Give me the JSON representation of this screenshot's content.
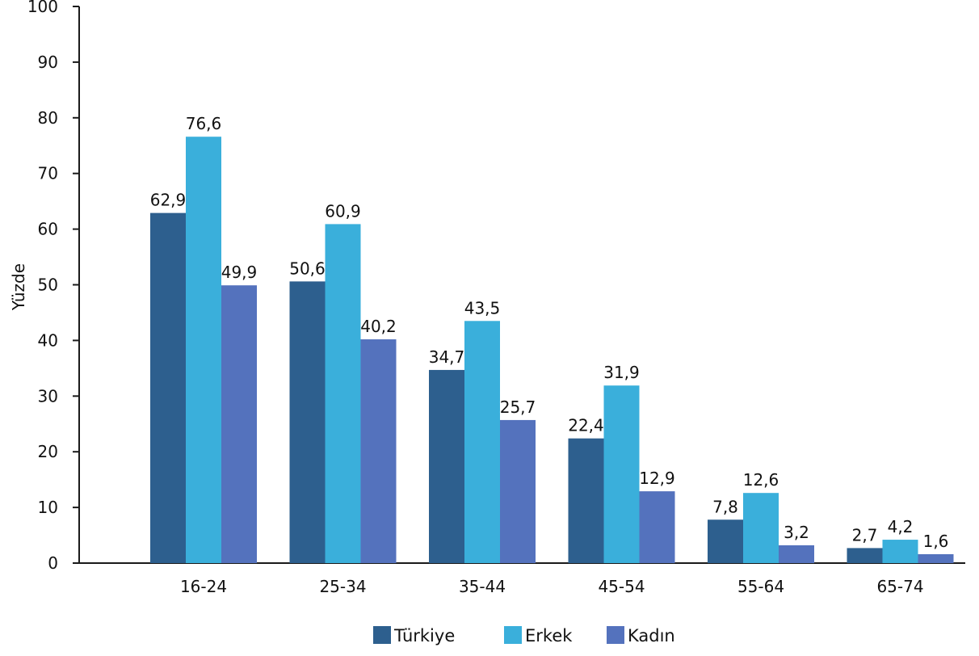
{
  "chart_data": {
    "type": "bar",
    "title": "",
    "xlabel": "",
    "ylabel": "Yüzde",
    "ylim": [
      0,
      100
    ],
    "yticks": [
      0,
      10,
      20,
      30,
      40,
      50,
      60,
      70,
      80,
      90,
      100
    ],
    "categories": [
      "16-24",
      "25-34",
      "35-44",
      "45-54",
      "55-64",
      "65-74"
    ],
    "series": [
      {
        "name": "Türkiye",
        "color": "#2d5f8e",
        "values": [
          62.9,
          50.6,
          34.7,
          22.4,
          7.8,
          2.7
        ],
        "labels": [
          "62,9",
          "50,6",
          "34,7",
          "22,4",
          "7,8",
          "2,7"
        ]
      },
      {
        "name": "Erkek",
        "color": "#3aafdb",
        "values": [
          76.6,
          60.9,
          43.5,
          31.9,
          12.6,
          4.2
        ],
        "labels": [
          "76,6",
          "60,9",
          "43,5",
          "31,9",
          "12,6",
          "4,2"
        ]
      },
      {
        "name": "Kadın",
        "color": "#5472bd",
        "values": [
          49.9,
          40.2,
          25.7,
          12.9,
          3.2,
          1.6
        ],
        "labels": [
          "49,9",
          "40,2",
          "25,7",
          "12,9",
          "3,2",
          "1,6"
        ]
      }
    ],
    "grid": false,
    "legend_position": "bottom"
  }
}
